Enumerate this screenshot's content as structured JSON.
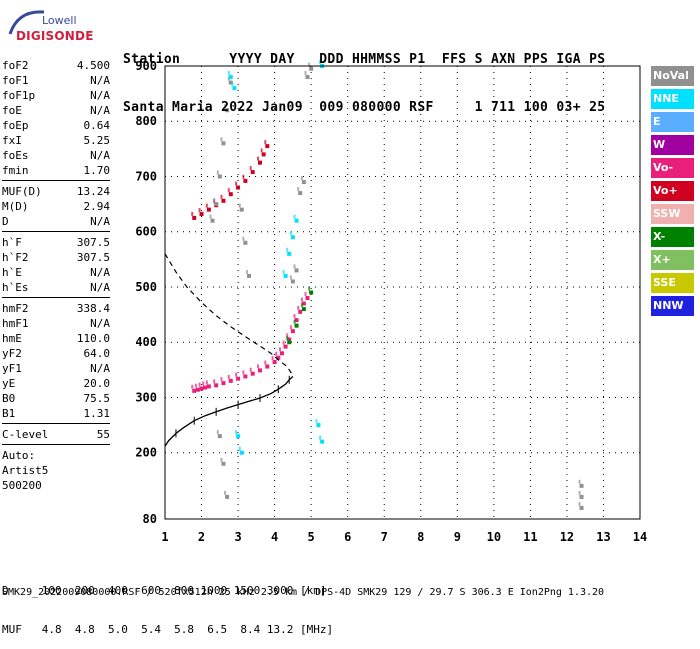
{
  "logo": {
    "line1": "Lowell",
    "line2": "DIGISONDE"
  },
  "header": {
    "row1": "Station      YYYY DAY   DDD HHMMSS P1  FFS S AXN PPS IGA PS",
    "row2": "Santa Maria 2022 Jan09  009 080000 RSF     1 711 100 03+ 25"
  },
  "params": [
    {
      "label": "foF2",
      "value": "4.500"
    },
    {
      "label": "foF1",
      "value": "N/A"
    },
    {
      "label": "foF1p",
      "value": "N/A"
    },
    {
      "label": "foE",
      "value": "N/A"
    },
    {
      "label": "foEp",
      "value": "0.64"
    },
    {
      "label": "fxI",
      "value": "5.25"
    },
    {
      "label": "foEs",
      "value": "N/A"
    },
    {
      "label": "fmin",
      "value": "1.70"
    },
    {
      "sep": true
    },
    {
      "label": "MUF(D)",
      "value": "13.24"
    },
    {
      "label": "M(D)",
      "value": "2.94"
    },
    {
      "label": "D",
      "value": "N/A"
    },
    {
      "sep": true
    },
    {
      "label": "h`F",
      "value": "307.5"
    },
    {
      "label": "h`F2",
      "value": "307.5"
    },
    {
      "label": "h`E",
      "value": "N/A"
    },
    {
      "label": "h`Es",
      "value": "N/A"
    },
    {
      "sep": true
    },
    {
      "label": "hmF2",
      "value": "338.4"
    },
    {
      "label": "hmF1",
      "value": "N/A"
    },
    {
      "label": "hmE",
      "value": "110.0"
    },
    {
      "label": "yF2",
      "value": "64.0"
    },
    {
      "label": "yF1",
      "value": "N/A"
    },
    {
      "label": "yE",
      "value": "20.0"
    },
    {
      "label": "B0",
      "value": "75.5"
    },
    {
      "label": "B1",
      "value": "1.31"
    },
    {
      "sep": true
    },
    {
      "label": "C-level",
      "value": "55"
    },
    {
      "sep": true
    },
    {
      "label": "Auto:",
      "value": ""
    },
    {
      "label": "Artist5",
      "value": ""
    },
    {
      "label": "500200",
      "value": ""
    }
  ],
  "legend": [
    {
      "name": "NoVal",
      "color": "#909090"
    },
    {
      "name": "NNE",
      "color": "#00e0ff"
    },
    {
      "name": "E",
      "color": "#5aaeff"
    },
    {
      "name": "W",
      "color": "#a000a0"
    },
    {
      "name": "Vo-",
      "color": "#e8207c"
    },
    {
      "name": "Vo+",
      "color": "#d00020"
    },
    {
      "name": "SSW",
      "color": "#f0b0b0"
    },
    {
      "name": "X-",
      "color": "#008000"
    },
    {
      "name": "X+",
      "color": "#80c060"
    },
    {
      "name": "SSE",
      "color": "#c8c800"
    },
    {
      "name": "NNW",
      "color": "#2020e0"
    }
  ],
  "footer": {
    "row1": "D     100  200  400  600  800 1000 1500 3000 [km]",
    "row2": "MUF   4.8  4.8  5.0  5.4  5.8  6.5  8.4 13.2 [MHz]",
    "row3": "SMK29_2022009080000.RSF / 520fx512h 25 kHz 2.5 km / DPS-4D SMK29 129 / 29.7 S 306.3 E Ion2Png 1.3.20"
  },
  "chart_data": {
    "type": "scatter",
    "xlabel": "",
    "ylabel": "",
    "xlim": [
      1,
      14
    ],
    "ylim": [
      80,
      900
    ],
    "x_ticks": [
      1,
      2,
      3,
      4,
      5,
      6,
      7,
      8,
      9,
      10,
      11,
      12,
      13,
      14
    ],
    "y_ticks": [
      80,
      200,
      300,
      400,
      500,
      600,
      700,
      800,
      900
    ],
    "grid": true,
    "series": [
      {
        "name": "trace-o",
        "color": "#e8207c",
        "points": [
          [
            1.8,
            312
          ],
          [
            1.9,
            314
          ],
          [
            2.0,
            316
          ],
          [
            2.1,
            318
          ],
          [
            2.2,
            320
          ],
          [
            2.4,
            322
          ],
          [
            2.6,
            326
          ],
          [
            2.8,
            330
          ],
          [
            3.0,
            334
          ],
          [
            3.2,
            338
          ],
          [
            3.4,
            343
          ],
          [
            3.6,
            349
          ],
          [
            3.8,
            356
          ],
          [
            4.0,
            364
          ],
          [
            4.1,
            372
          ],
          [
            4.2,
            380
          ],
          [
            4.3,
            392
          ],
          [
            4.4,
            405
          ],
          [
            4.5,
            420
          ],
          [
            4.6,
            440
          ],
          [
            4.7,
            455
          ],
          [
            4.8,
            470
          ],
          [
            4.9,
            480
          ]
        ]
      },
      {
        "name": "trace-upper",
        "color": "#d00020",
        "points": [
          [
            1.8,
            625
          ],
          [
            2.0,
            632
          ],
          [
            2.2,
            640
          ],
          [
            2.4,
            648
          ],
          [
            2.6,
            656
          ],
          [
            2.8,
            668
          ],
          [
            3.0,
            680
          ],
          [
            3.2,
            692
          ],
          [
            3.4,
            708
          ],
          [
            3.6,
            725
          ],
          [
            3.7,
            740
          ],
          [
            3.8,
            755
          ]
        ]
      },
      {
        "name": "trace-x",
        "color": "#008000",
        "points": [
          [
            4.4,
            400
          ],
          [
            4.6,
            430
          ],
          [
            4.8,
            460
          ],
          [
            5.0,
            490
          ]
        ]
      },
      {
        "name": "noval-vertical",
        "color": "#909090",
        "points": [
          [
            2.3,
            620
          ],
          [
            2.4,
            650
          ],
          [
            2.5,
            700
          ],
          [
            2.6,
            760
          ],
          [
            2.7,
            820
          ],
          [
            2.8,
            870
          ],
          [
            3.3,
            520
          ],
          [
            3.2,
            580
          ],
          [
            3.1,
            640
          ],
          [
            2.5,
            230
          ],
          [
            2.6,
            180
          ],
          [
            2.7,
            120
          ],
          [
            4.5,
            510
          ],
          [
            4.6,
            530
          ],
          [
            4.7,
            670
          ],
          [
            4.8,
            690
          ],
          [
            4.9,
            880
          ],
          [
            5.0,
            895
          ],
          [
            12.4,
            100
          ],
          [
            12.4,
            120
          ],
          [
            12.4,
            140
          ]
        ]
      },
      {
        "name": "nne",
        "color": "#00e0ff",
        "points": [
          [
            2.8,
            880
          ],
          [
            2.9,
            860
          ],
          [
            3.0,
            230
          ],
          [
            3.1,
            200
          ],
          [
            4.3,
            520
          ],
          [
            4.4,
            560
          ],
          [
            4.5,
            590
          ],
          [
            4.6,
            620
          ],
          [
            5.3,
            900
          ],
          [
            5.2,
            250
          ],
          [
            5.3,
            220
          ]
        ]
      }
    ],
    "profile_curve": {
      "name": "profile",
      "points": [
        [
          1.0,
          212
        ],
        [
          1.1,
          222
        ],
        [
          1.3,
          235
        ],
        [
          1.5,
          245
        ],
        [
          1.8,
          258
        ],
        [
          2.1,
          267
        ],
        [
          2.4,
          274
        ],
        [
          2.7,
          281
        ],
        [
          3.0,
          287
        ],
        [
          3.3,
          293
        ],
        [
          3.6,
          299
        ],
        [
          3.9,
          307
        ],
        [
          4.1,
          315
        ],
        [
          4.3,
          324
        ],
        [
          4.4,
          332
        ],
        [
          4.5,
          338
        ]
      ]
    },
    "dashed_curve": {
      "name": "dashed",
      "points": [
        [
          1.0,
          560
        ],
        [
          1.3,
          527
        ],
        [
          1.6,
          500
        ],
        [
          2.0,
          472
        ],
        [
          2.4,
          448
        ],
        [
          2.8,
          428
        ],
        [
          3.2,
          410
        ],
        [
          3.6,
          393
        ],
        [
          3.9,
          380
        ],
        [
          4.1,
          368
        ],
        [
          4.3,
          358
        ],
        [
          4.4,
          350
        ],
        [
          4.5,
          340
        ]
      ]
    }
  }
}
